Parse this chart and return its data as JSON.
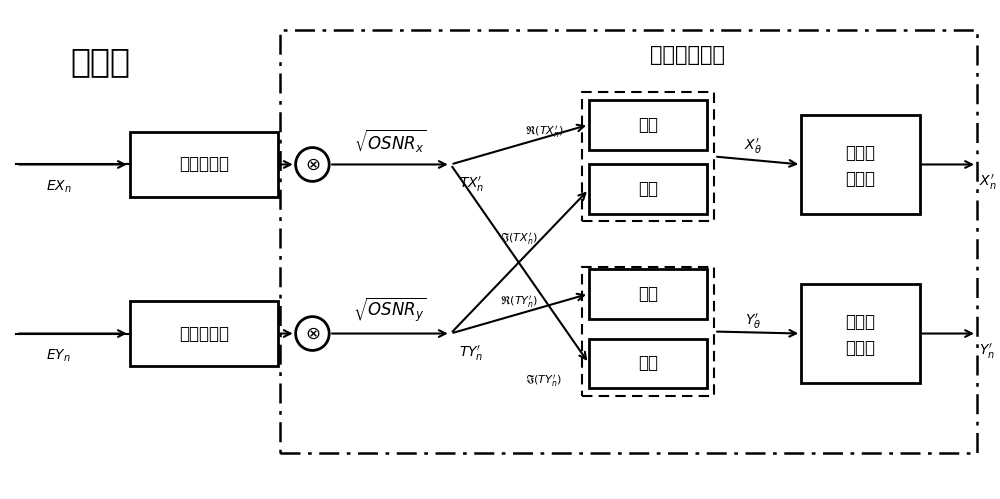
{
  "title_left": "接收方",
  "title_right": "极化成对解码",
  "snr_box1_label": "信噪比估计",
  "snr_box2_label": "信噪比估计",
  "real_box1_label": "实部",
  "imag_box1_label": "虚部",
  "real_box2_label": "实部",
  "imag_box2_label": "虚部",
  "mle_box1_line1": "极大似",
  "mle_box1_line2": "然估计",
  "mle_box2_line1": "极大似",
  "mle_box2_line2": "然估计",
  "input1": "$EX_n$",
  "input2": "$EY_n$",
  "tx_label": "$TX_n'$",
  "ty_label": "$TY_n'$",
  "re_tx_label": "$\\mathfrak{R}(TX_n')$",
  "im_tx_label": "$\\mathfrak{I}(TX_n')$",
  "re_ty_label": "$\\mathfrak{R}(TY_n')$",
  "im_ty_label": "$\\mathfrak{I}(TY_n')$",
  "x_theta": "$X_{\\theta}'$",
  "y_theta": "$Y_{\\theta}'$",
  "xn_out": "$X_n'$",
  "yn_out": "$Y_n'$",
  "bg_color": "#ffffff"
}
